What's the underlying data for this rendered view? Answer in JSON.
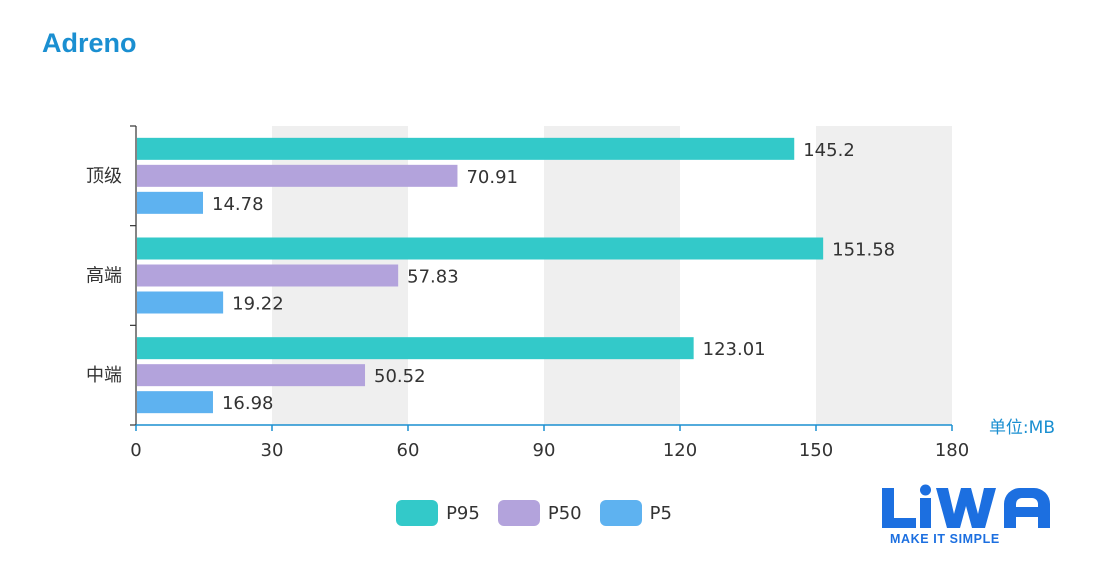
{
  "title": "Adreno",
  "chart_data": {
    "type": "bar",
    "orientation": "horizontal",
    "categories": [
      "顶级",
      "高端",
      "中端"
    ],
    "series": [
      {
        "name": "P95",
        "color": "#33c9c9",
        "values": [
          145.2,
          151.58,
          123.01
        ]
      },
      {
        "name": "P50",
        "color": "#b3a3dc",
        "values": [
          70.91,
          57.83,
          50.52
        ]
      },
      {
        "name": "P5",
        "color": "#5eb2f0",
        "values": [
          14.78,
          19.22,
          16.98
        ]
      }
    ],
    "value_labels": [
      [
        "145.2",
        "151.58",
        "123.01"
      ],
      [
        "70.91",
        "57.83",
        "50.52"
      ],
      [
        "14.78",
        "19.22",
        "16.98"
      ]
    ],
    "xlim": [
      0,
      180
    ],
    "xticks": [
      0,
      30,
      60,
      90,
      120,
      150,
      180
    ],
    "unit_label": "单位:MB",
    "legend": [
      "P95",
      "P50",
      "P5"
    ],
    "legend_position": "bottom-center",
    "split_area": true
  },
  "colors": {
    "title": "#1a8fd1",
    "axis": "#1a8fd1",
    "unit": "#1a8fd1",
    "band": "#efefef",
    "logo": "#1c6fe0"
  },
  "logo": {
    "name": "LiWA",
    "tagline": "MAKE IT SIMPLE"
  }
}
